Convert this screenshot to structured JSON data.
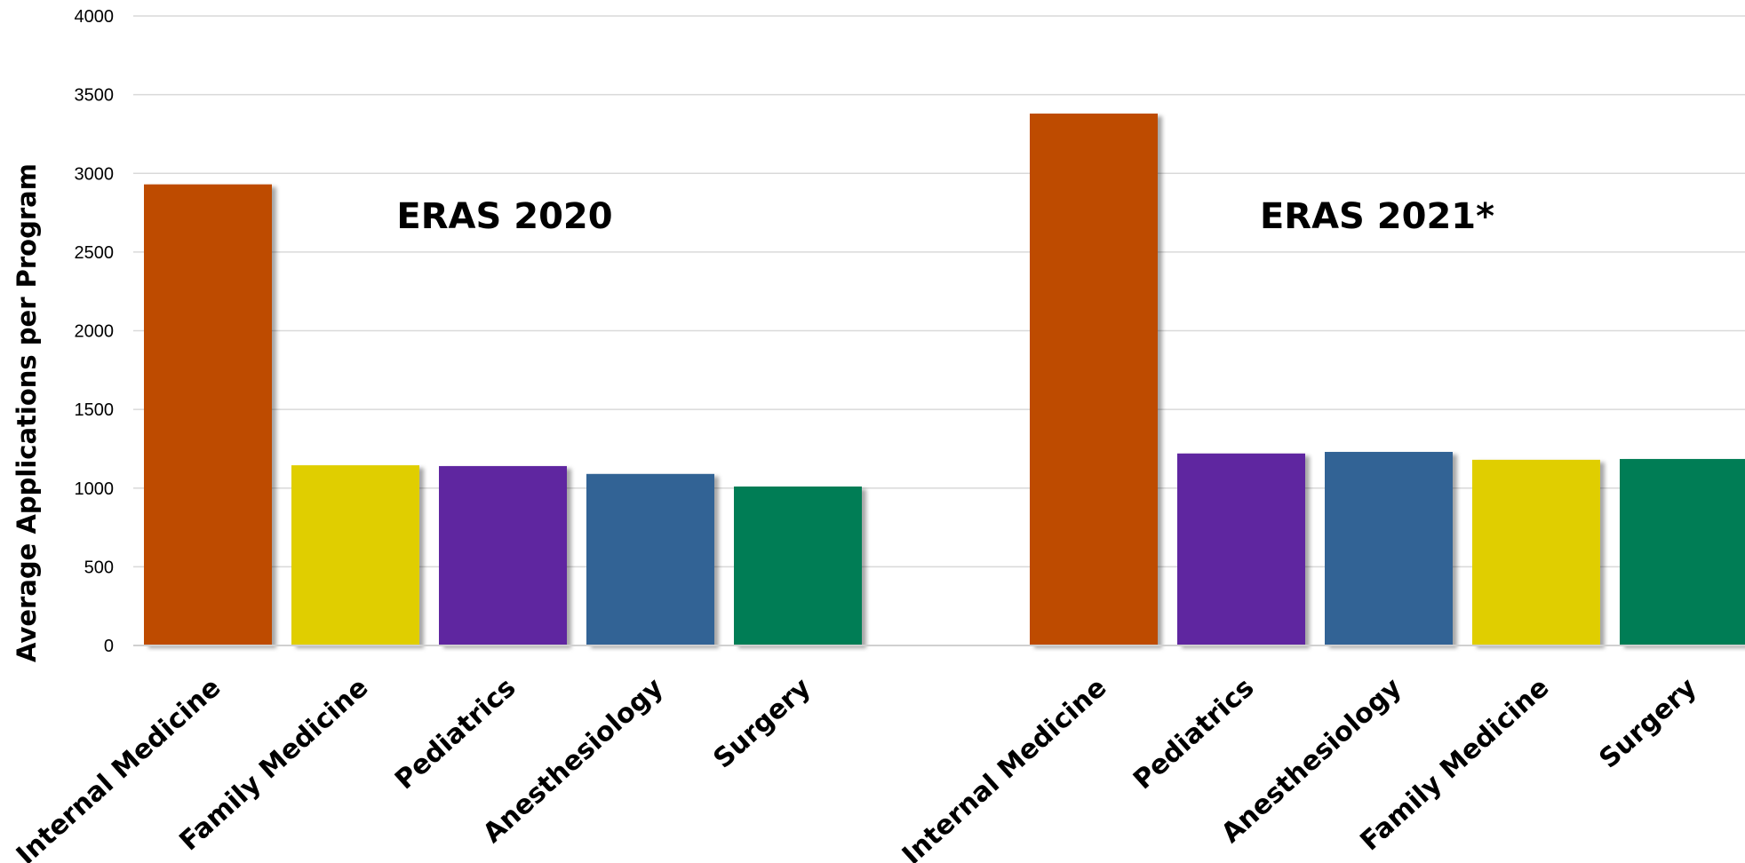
{
  "chart_data": {
    "type": "bar",
    "ylabel": "Average Applications per Program",
    "ylim": [
      0,
      4000
    ],
    "yticks": [
      0,
      500,
      1000,
      1500,
      2000,
      2500,
      3000,
      3500,
      4000
    ],
    "grid": true,
    "groups": [
      {
        "title": "ERAS 2020",
        "categories": [
          "Internal Medicine",
          "Family Medicine",
          "Pediatrics",
          "Anesthesiology",
          "Surgery"
        ],
        "values": [
          2930,
          1145,
          1140,
          1090,
          1010
        ],
        "colors": [
          "#BE4B01",
          "#E0CE00",
          "#5F26A0",
          "#316395",
          "#007D55"
        ]
      },
      {
        "title": "ERAS 2021*",
        "categories": [
          "Internal Medicine",
          "Pediatrics",
          "Anesthesiology",
          "Family Medicine",
          "Surgery"
        ],
        "values": [
          3380,
          1220,
          1230,
          1180,
          1185
        ],
        "colors": [
          "#BE4B01",
          "#5F26A0",
          "#316395",
          "#E0CE00",
          "#007D55"
        ]
      }
    ]
  }
}
